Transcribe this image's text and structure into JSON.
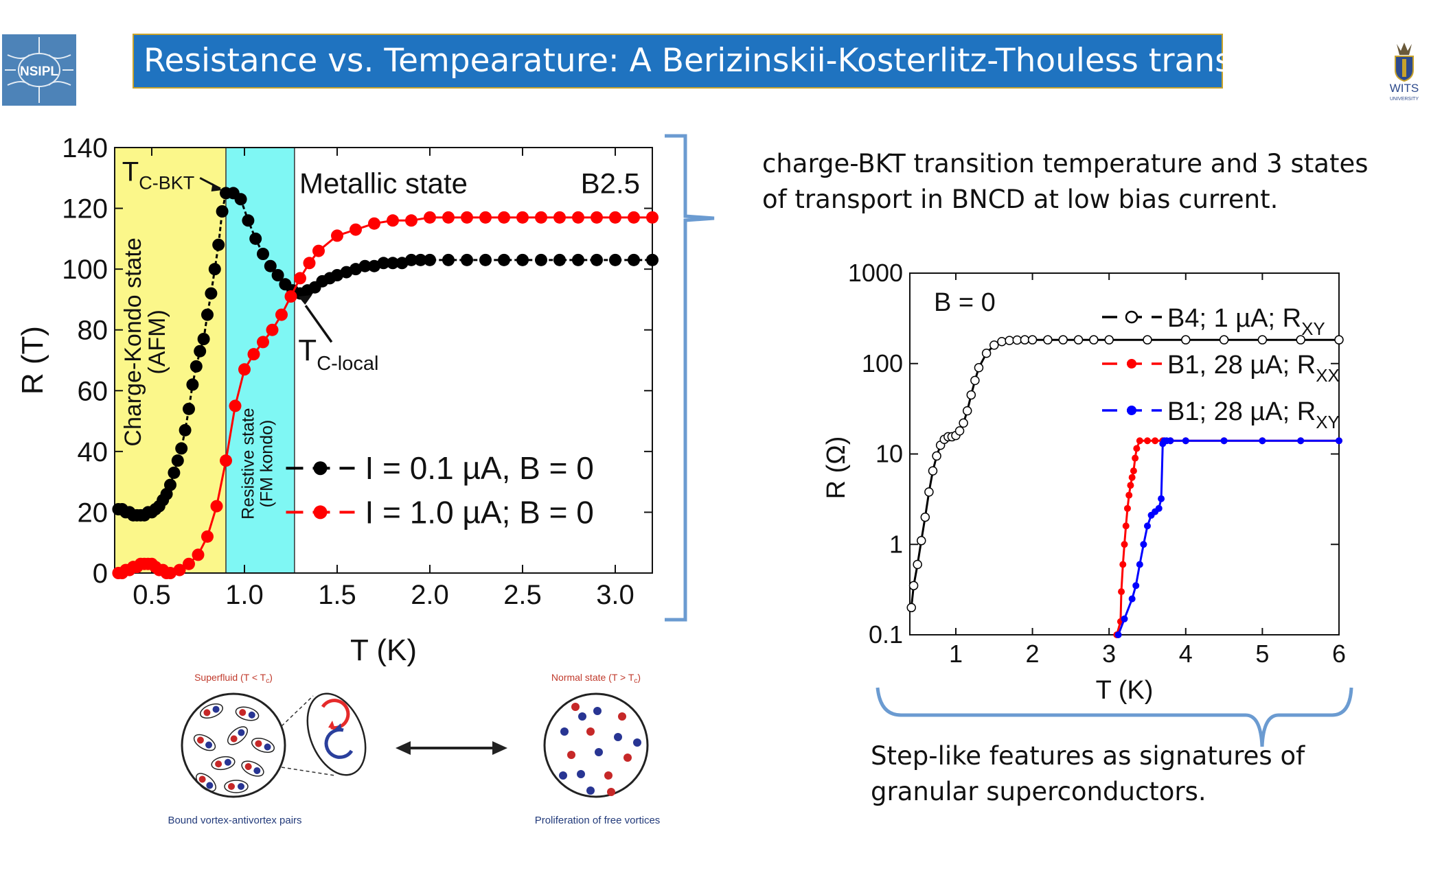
{
  "header": {
    "title": "Resistance vs. Tempearature: A Berizinskii-Kosterlitz-Thouless transistion",
    "logo_left_text": "NSIPL",
    "logo_right_text": "WITS",
    "logo_right_subtext": "UNIVERSITY"
  },
  "captions": {
    "right_top": "charge-BKT transition temperature and 3 states of transport in BNCD at low bias current.",
    "right_bottom": "Step-like features as signatures of granular superconductors."
  },
  "diagram": {
    "left_title": "Superfluid (T < T",
    "left_title_sub": "c",
    "left_title_end": ")",
    "left_caption": "Bound vortex-antivortex pairs",
    "right_title": "Normal state (T > T",
    "right_title_sub": "c",
    "right_title_end": ")",
    "right_caption": "Proliferation of free vortices"
  },
  "colors": {
    "title_bar": "#1f73c0",
    "afm_region": "#fbf78a",
    "fm_region": "#7ff7f4",
    "series_black": "#000000",
    "series_red": "#ff0000",
    "series_blue": "#0000ff",
    "bracket": "#6b9bd1"
  },
  "chart_data": [
    {
      "type": "line",
      "xlabel": "T (K)",
      "ylabel": "R (T)",
      "xlim": [
        0.3,
        3.2
      ],
      "ylim": [
        0,
        140
      ],
      "xticks": [
        0.5,
        1.0,
        1.5,
        2.0,
        2.5,
        3.0
      ],
      "xtick_labels": [
        "0.5",
        "1.0",
        "1.5",
        "2.0",
        "2.5",
        "3.0"
      ],
      "yticks": [
        0,
        20,
        40,
        60,
        80,
        100,
        120,
        140
      ],
      "ytick_labels": [
        "0",
        "20",
        "40",
        "60",
        "80",
        "100",
        "120",
        "140"
      ],
      "regions": [
        {
          "from": 0.3,
          "to": 0.9,
          "color": "#fbf78a",
          "label": "Charge-Kondo state",
          "label2": "(AFM)"
        },
        {
          "from": 0.9,
          "to": 1.27,
          "color": "#7ff7f4",
          "label": "Resistive state",
          "label2": "(FM kondo)"
        }
      ],
      "annotations": {
        "metallic": "Metallic state",
        "sample": "B2.5",
        "tc_bkt_main": "T",
        "tc_bkt_sub": "C-BKT",
        "tc_local_main": "T",
        "tc_local_sub": "C-local"
      },
      "series": [
        {
          "name": "I = 0.1 µA, B = 0",
          "color": "#000000",
          "marker": "circle-filled",
          "x": [
            0.32,
            0.34,
            0.36,
            0.38,
            0.4,
            0.42,
            0.44,
            0.46,
            0.48,
            0.5,
            0.52,
            0.54,
            0.56,
            0.58,
            0.6,
            0.62,
            0.64,
            0.66,
            0.68,
            0.7,
            0.72,
            0.74,
            0.76,
            0.78,
            0.8,
            0.82,
            0.84,
            0.86,
            0.88,
            0.9,
            0.94,
            0.98,
            1.02,
            1.06,
            1.1,
            1.14,
            1.18,
            1.22,
            1.26,
            1.3,
            1.34,
            1.38,
            1.42,
            1.46,
            1.5,
            1.55,
            1.6,
            1.65,
            1.7,
            1.75,
            1.8,
            1.85,
            1.9,
            1.95,
            2.0,
            2.1,
            2.2,
            2.3,
            2.4,
            2.5,
            2.6,
            2.7,
            2.8,
            2.9,
            3.0,
            3.1,
            3.2
          ],
          "y": [
            21,
            21,
            20,
            20,
            19,
            19,
            19,
            19,
            20,
            20,
            21,
            22,
            24,
            26,
            29,
            33,
            37,
            41,
            47,
            54,
            62,
            68,
            73,
            77,
            85,
            92,
            100,
            108,
            119,
            125,
            125,
            123,
            116,
            110,
            105,
            101,
            98,
            95,
            93,
            92,
            93,
            94,
            96,
            97,
            98,
            99,
            100,
            101,
            101,
            102,
            102,
            102,
            103,
            103,
            103,
            103,
            103,
            103,
            103,
            103,
            103,
            103,
            103,
            103,
            103,
            103,
            103
          ]
        },
        {
          "name": "I = 1.0 µA; B = 0",
          "color": "#ff0000",
          "marker": "circle-filled",
          "x": [
            0.32,
            0.34,
            0.36,
            0.38,
            0.4,
            0.42,
            0.44,
            0.46,
            0.48,
            0.5,
            0.52,
            0.54,
            0.56,
            0.58,
            0.6,
            0.65,
            0.7,
            0.75,
            0.8,
            0.85,
            0.9,
            0.95,
            1.0,
            1.05,
            1.1,
            1.15,
            1.2,
            1.25,
            1.3,
            1.35,
            1.4,
            1.5,
            1.6,
            1.7,
            1.8,
            1.9,
            2.0,
            2.1,
            2.2,
            2.3,
            2.4,
            2.5,
            2.6,
            2.7,
            2.8,
            2.9,
            3.0,
            3.1,
            3.2
          ],
          "y": [
            0,
            0,
            1,
            1,
            2,
            2,
            3,
            3,
            3,
            3,
            2,
            1,
            1,
            0,
            0,
            1,
            3,
            6,
            12,
            22,
            37,
            55,
            67,
            72,
            76,
            80,
            85,
            91,
            97,
            102,
            106,
            111,
            113,
            115,
            116,
            116,
            117,
            117,
            117,
            117,
            117,
            117,
            117,
            117,
            117,
            117,
            117,
            117,
            117
          ]
        }
      ]
    },
    {
      "type": "line",
      "xlabel": "T (K)",
      "ylabel": "R (Ω)",
      "yscale": "log",
      "xlim": [
        0.4,
        6
      ],
      "ylim": [
        0.1,
        1000
      ],
      "xticks": [
        1,
        2,
        3,
        4,
        5,
        6
      ],
      "xtick_labels": [
        "1",
        "2",
        "3",
        "4",
        "5",
        "6"
      ],
      "yticks": [
        0.1,
        1,
        10,
        100,
        1000
      ],
      "ytick_labels": [
        "0.1",
        "1",
        "10",
        "100",
        "1000"
      ],
      "annotation": "B = 0",
      "series": [
        {
          "name": "B4;   1 µA; R",
          "name_sub": "XY",
          "color": "#000000",
          "marker": "circle-open",
          "x": [
            0.42,
            0.45,
            0.5,
            0.55,
            0.6,
            0.65,
            0.7,
            0.75,
            0.8,
            0.85,
            0.9,
            0.95,
            1.0,
            1.05,
            1.1,
            1.15,
            1.2,
            1.25,
            1.3,
            1.4,
            1.5,
            1.6,
            1.7,
            1.8,
            1.9,
            2.0,
            2.2,
            2.4,
            2.6,
            2.8,
            3.0,
            3.5,
            4.0,
            4.5,
            5.0,
            5.5,
            6.0
          ],
          "y": [
            0.2,
            0.35,
            0.6,
            1.1,
            2.0,
            3.8,
            6.5,
            9.5,
            12.5,
            14.5,
            15.5,
            15.5,
            16,
            18,
            22,
            30,
            45,
            65,
            90,
            130,
            160,
            175,
            180,
            182,
            183,
            183,
            183,
            183,
            183,
            183,
            183,
            183,
            183,
            183,
            183,
            183,
            183
          ]
        },
        {
          "name": "B1, 28 µA; R",
          "name_sub": "XX",
          "color": "#ff0000",
          "marker": "circle-filled",
          "x": [
            3.1,
            3.15,
            3.16,
            3.18,
            3.2,
            3.22,
            3.24,
            3.26,
            3.28,
            3.3,
            3.32,
            3.34,
            3.36,
            3.4,
            3.5,
            3.6,
            3.7,
            3.8,
            4.0,
            4.5,
            5.0,
            5.5,
            6.0
          ],
          "y": [
            0.1,
            0.14,
            0.3,
            0.6,
            1.0,
            1.6,
            2.5,
            3.5,
            4.5,
            5.5,
            6.5,
            9,
            11.5,
            14,
            14,
            14,
            14,
            14,
            14,
            14,
            14,
            14,
            14
          ],
          "stepped": true
        },
        {
          "name": "B1; 28 µA; R",
          "name_sub": "XY",
          "color": "#0000ff",
          "marker": "circle-filled",
          "x": [
            3.12,
            3.2,
            3.3,
            3.35,
            3.4,
            3.45,
            3.5,
            3.55,
            3.6,
            3.65,
            3.68,
            3.7,
            3.72,
            3.75,
            3.8,
            4.0,
            4.5,
            5.0,
            5.5,
            6.0
          ],
          "y": [
            0.1,
            0.15,
            0.25,
            0.35,
            0.6,
            1.0,
            1.6,
            2.1,
            2.3,
            2.5,
            3.2,
            13,
            14,
            14,
            14,
            14,
            14,
            14,
            14,
            14
          ]
        }
      ]
    }
  ]
}
